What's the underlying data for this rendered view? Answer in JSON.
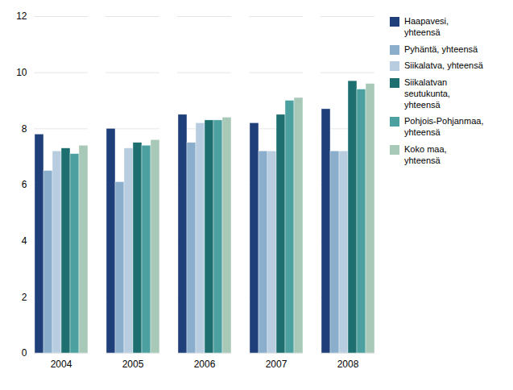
{
  "chart_data": {
    "type": "bar",
    "categories": [
      "2004",
      "2005",
      "2006",
      "2007",
      "2008"
    ],
    "series": [
      {
        "name": "Haapavesi,\nyhteensä",
        "color": "#1e3f7a",
        "values": [
          7.8,
          8.0,
          8.5,
          8.2,
          8.7
        ]
      },
      {
        "name": "Pyhäntä, yhteensä",
        "color": "#8aaecc",
        "values": [
          6.5,
          6.1,
          7.5,
          7.2,
          7.2
        ]
      },
      {
        "name": "Siikalatva, yhteensä",
        "color": "#b8cee0",
        "values": [
          7.2,
          7.3,
          8.2,
          7.2,
          7.2
        ]
      },
      {
        "name": "Siikalatvan\nseutukunta,\nyhteensä",
        "color": "#1e7070",
        "values": [
          7.3,
          7.5,
          8.3,
          8.5,
          9.7
        ]
      },
      {
        "name": "Pohjois-Pohjanmaa,\nyhteensä",
        "color": "#4da0a0",
        "values": [
          7.1,
          7.4,
          8.3,
          9.0,
          9.4
        ]
      },
      {
        "name": "Koko maa,\nyhteensä",
        "color": "#a8c8b8",
        "values": [
          7.4,
          7.6,
          8.4,
          9.1,
          9.6
        ]
      }
    ],
    "ylim": [
      0,
      12
    ],
    "yticks": [
      0,
      2,
      4,
      6,
      8,
      10,
      12
    ],
    "grid": true,
    "legend": "right"
  }
}
